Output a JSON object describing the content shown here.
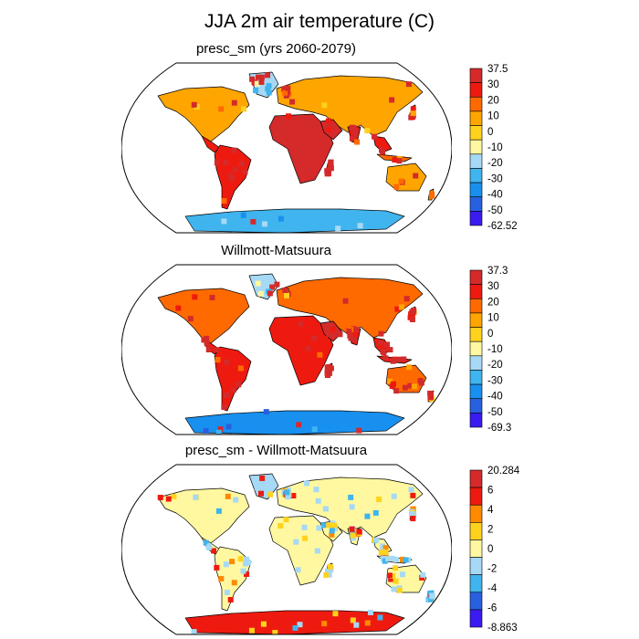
{
  "figure": {
    "title": "JJA 2m air temperature (C)"
  },
  "chart_data": [
    {
      "type": "heatmap",
      "title": "presc_sm (yrs 2060-2079)",
      "variable": "JJA 2m air temperature",
      "units": "C",
      "projection": "Robinson world map",
      "colorbar": {
        "labels": [
          "37.5",
          "30",
          "20",
          "10",
          "0",
          "-10",
          "-20",
          "-30",
          "-40",
          "-50",
          "-62.52"
        ],
        "colors": [
          "#d42a2a",
          "#ee1a10",
          "#ff6a00",
          "#ffa500",
          "#ffd21e",
          "#fff8a0",
          "#a6d9f5",
          "#40b4ee",
          "#1890f0",
          "#2860e0",
          "#3a1cf0"
        ]
      }
    },
    {
      "type": "heatmap",
      "title": "Willmott-Matsuura",
      "variable": "JJA 2m air temperature",
      "units": "C",
      "projection": "Robinson world map",
      "colorbar": {
        "labels": [
          "37.3",
          "30",
          "20",
          "10",
          "0",
          "-10",
          "-20",
          "-30",
          "-40",
          "-50",
          "-69.3"
        ],
        "colors": [
          "#d42a2a",
          "#ee1a10",
          "#ff6a00",
          "#ffa500",
          "#ffd21e",
          "#fff8a0",
          "#a6d9f5",
          "#40b4ee",
          "#1890f0",
          "#2860e0",
          "#3a1cf0"
        ]
      }
    },
    {
      "type": "heatmap",
      "title": "presc_sm - Willmott-Matsuura",
      "variable": "JJA 2m air temperature difference",
      "units": "C",
      "projection": "Robinson world map",
      "colorbar": {
        "labels": [
          "20.284",
          "6",
          "4",
          "2",
          "0",
          "-2",
          "-4",
          "-6",
          "-8.863"
        ],
        "colors": [
          "#d42a2a",
          "#ee1a10",
          "#ff8a00",
          "#ffd21e",
          "#fff8a0",
          "#a6d9f5",
          "#40b4ee",
          "#2860e0",
          "#3a1cf0"
        ]
      }
    }
  ]
}
